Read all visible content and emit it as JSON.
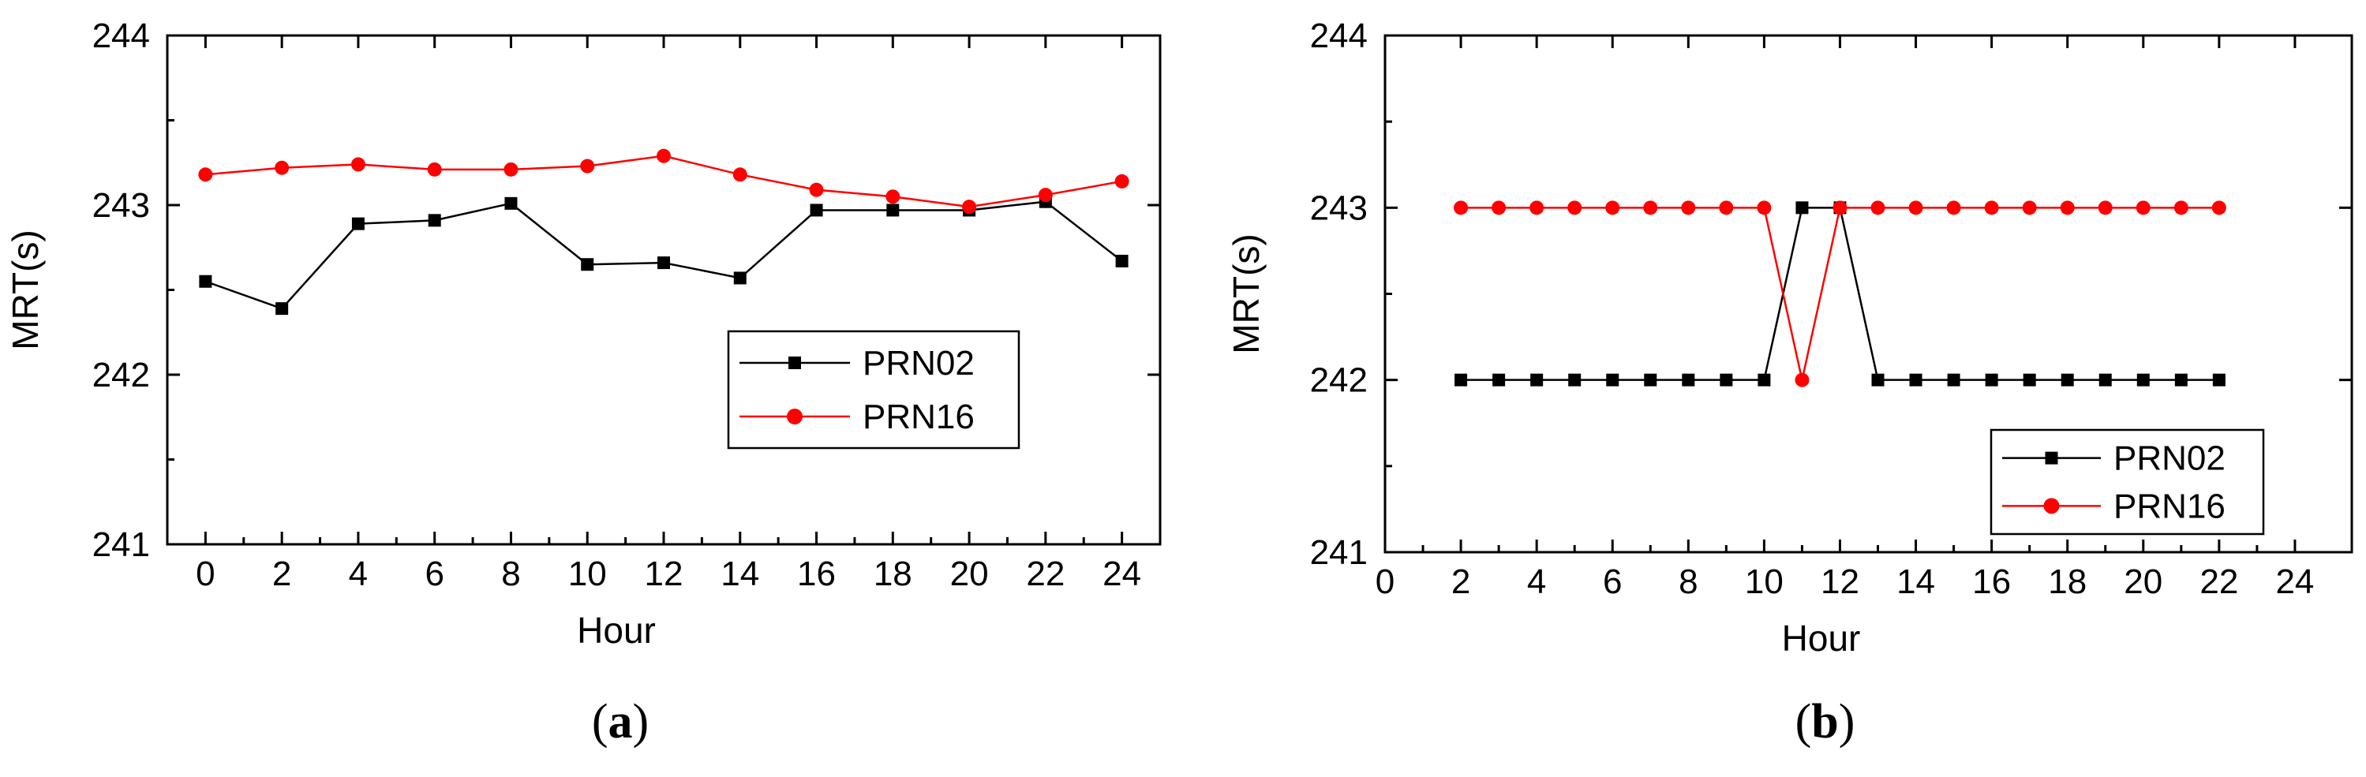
{
  "chart_data": [
    {
      "type": "line",
      "xlabel": "Hour",
      "ylabel": "MRT(s)",
      "xlim": [
        -1,
        25
      ],
      "ylim": [
        241,
        244
      ],
      "xticks": [
        0,
        2,
        4,
        6,
        8,
        10,
        12,
        14,
        16,
        18,
        20,
        22,
        24
      ],
      "yticks": [
        241,
        242,
        243,
        244
      ],
      "grid": false,
      "legend_position": "right",
      "caption": {
        "label": "a"
      },
      "series": [
        {
          "name": "PRN02",
          "color": "#000000",
          "marker": "square",
          "x": [
            0,
            2,
            4,
            6,
            8,
            10,
            12,
            14,
            16,
            18,
            20,
            22,
            24
          ],
          "y": [
            242.55,
            242.39,
            242.89,
            242.91,
            243.01,
            242.65,
            242.66,
            242.57,
            242.97,
            242.97,
            242.97,
            243.02,
            242.67
          ]
        },
        {
          "name": "PRN16",
          "color": "#ff0000",
          "marker": "circle",
          "x": [
            0,
            2,
            4,
            6,
            8,
            10,
            12,
            14,
            16,
            18,
            20,
            22,
            24
          ],
          "y": [
            243.18,
            243.22,
            243.24,
            243.21,
            243.21,
            243.23,
            243.29,
            243.18,
            243.09,
            243.05,
            242.99,
            243.06,
            243.14
          ]
        }
      ]
    },
    {
      "type": "line",
      "xlabel": "Hour",
      "ylabel": "MRT(s)",
      "xlim": [
        0,
        25.5
      ],
      "ylim": [
        241,
        244
      ],
      "xticks": [
        0,
        2,
        4,
        6,
        8,
        10,
        12,
        14,
        16,
        18,
        20,
        22,
        24
      ],
      "yticks": [
        241,
        242,
        243,
        244
      ],
      "grid": false,
      "legend_position": "bottom-right",
      "caption": {
        "label": "b"
      },
      "series": [
        {
          "name": "PRN02",
          "color": "#000000",
          "marker": "square",
          "x": [
            2,
            3,
            4,
            5,
            6,
            7,
            8,
            9,
            10,
            11,
            12,
            13,
            14,
            15,
            16,
            17,
            18,
            19,
            20,
            21,
            22
          ],
          "y": [
            242,
            242,
            242,
            242,
            242,
            242,
            242,
            242,
            242,
            243,
            243,
            242,
            242,
            242,
            242,
            242,
            242,
            242,
            242,
            242,
            242
          ]
        },
        {
          "name": "PRN16",
          "color": "#ff0000",
          "marker": "circle",
          "x": [
            2,
            3,
            4,
            5,
            6,
            7,
            8,
            9,
            10,
            11,
            12,
            13,
            14,
            15,
            16,
            17,
            18,
            19,
            20,
            21,
            22
          ],
          "y": [
            243,
            243,
            243,
            243,
            243,
            243,
            243,
            243,
            243,
            242,
            243,
            243,
            243,
            243,
            243,
            243,
            243,
            243,
            243,
            243,
            243
          ]
        }
      ]
    }
  ]
}
